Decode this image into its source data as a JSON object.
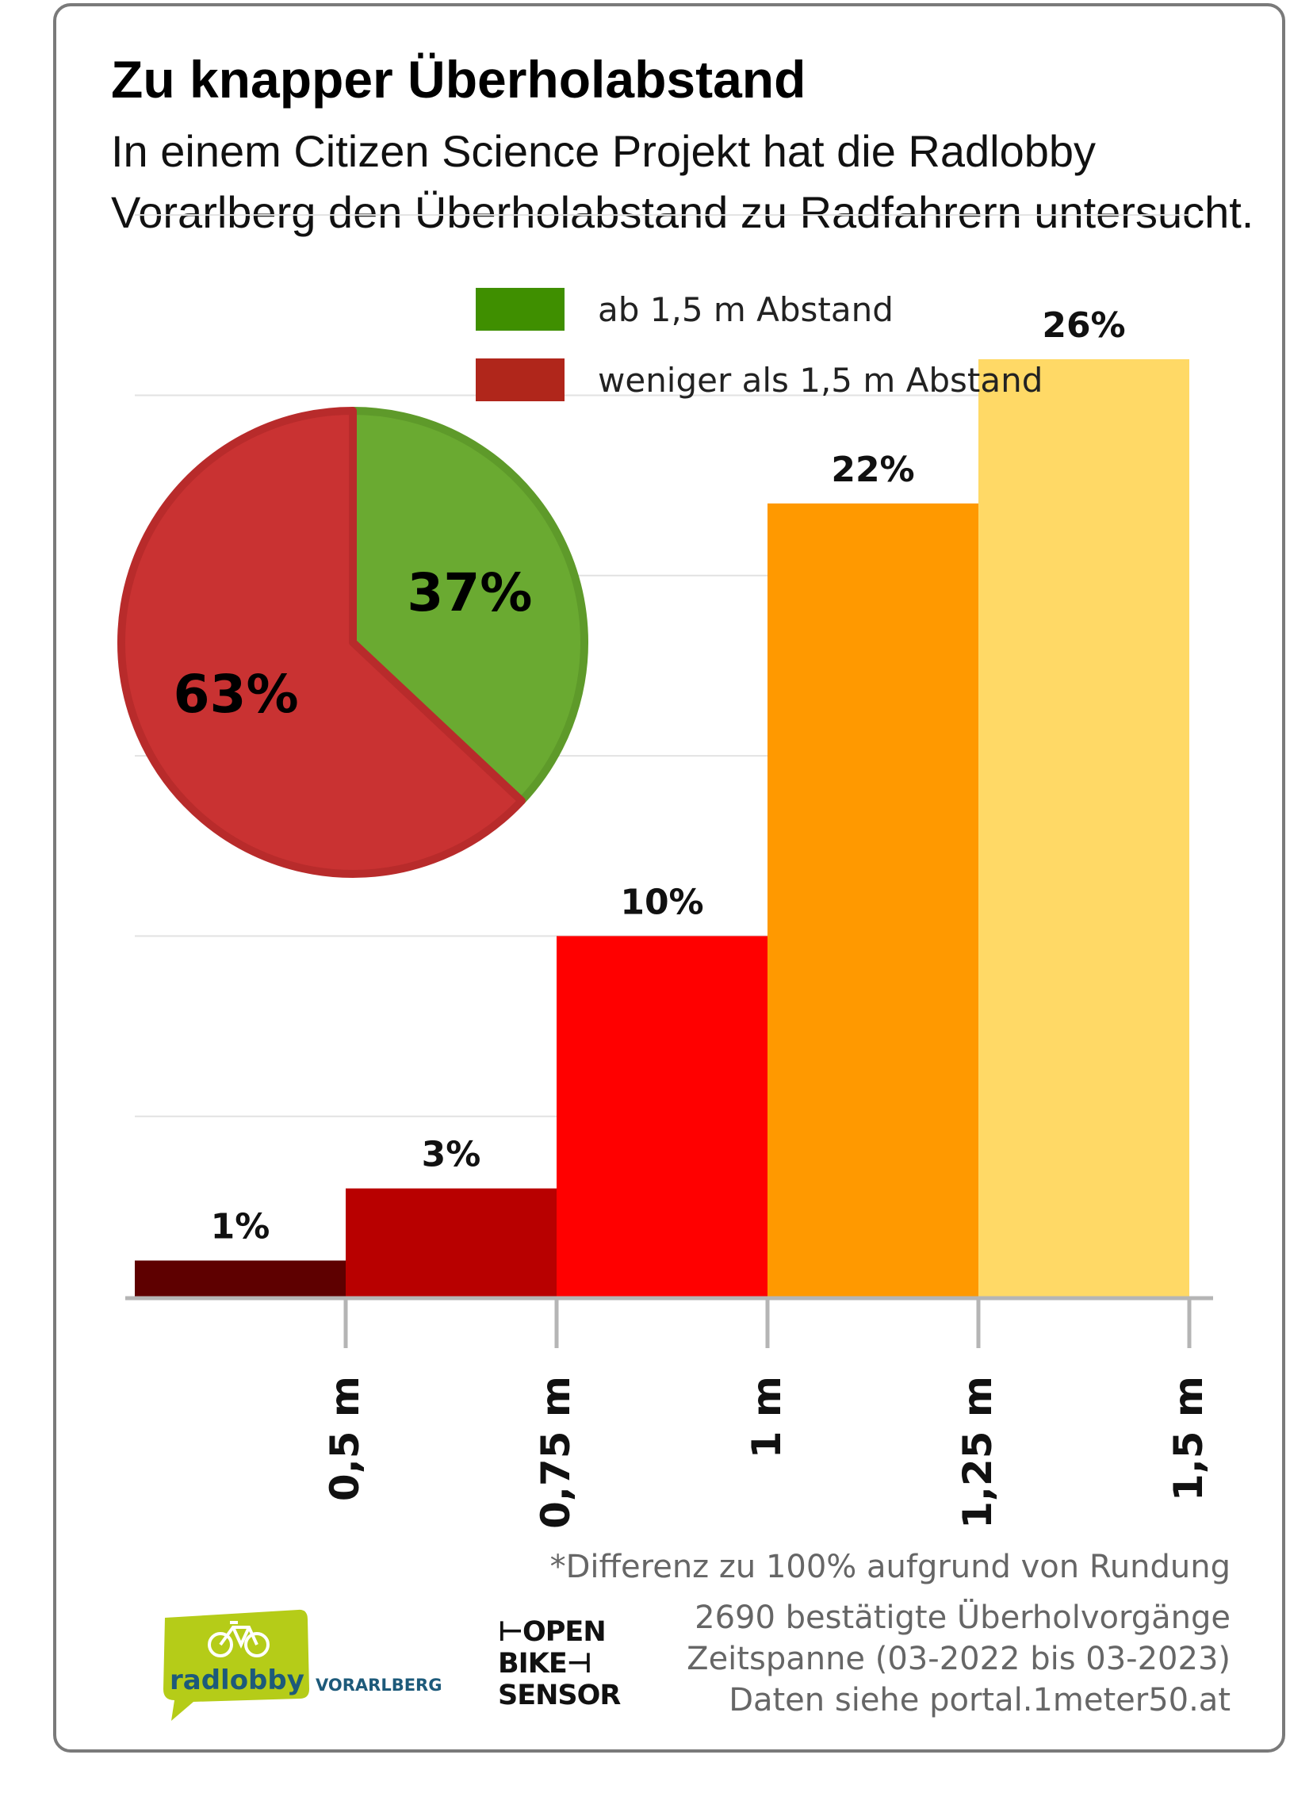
{
  "title": "Zu knapper Überholabstand",
  "subtitle": "In einem Citizen Science Projekt hat die Radlobby Vorarlberg den Überholabstand zu Radfahrern untersucht.",
  "legend": [
    {
      "label": "ab 1,5 m Abstand",
      "color": "#3f8f00"
    },
    {
      "label": "weniger als 1,5 m Abstand",
      "color": "#b0261b"
    }
  ],
  "chart_data": [
    {
      "type": "bar",
      "title": "",
      "xlabel": "",
      "ylabel": "",
      "categories": [
        "< 0,5 m",
        "0,5 m – 0,75 m",
        "0,75 m – 1 m",
        "1 m – 1,25 m",
        "1,25 m – 1,5 m"
      ],
      "tick_labels": [
        "0,5 m",
        "0,75 m",
        "1 m",
        "1,25 m",
        "1,5 m"
      ],
      "values": [
        1,
        3,
        10,
        22,
        26
      ],
      "value_labels": [
        "1%",
        "3%",
        "10%",
        "22%",
        "26%"
      ],
      "colors": [
        "#5e0000",
        "#b80000",
        "#ff0000",
        "#ff9900",
        "#ffd966"
      ],
      "ylim": [
        0,
        30
      ],
      "grid": true
    },
    {
      "type": "pie",
      "labels": [
        "ab 1,5 m Abstand",
        "weniger als 1,5 m Abstand"
      ],
      "values": [
        37,
        63
      ],
      "value_labels": [
        "37%",
        "63%"
      ],
      "colors": [
        "#6aaa31",
        "#c93232"
      ]
    }
  ],
  "notes": {
    "rounding": "*Differenz zu 100% aufgrund von Rundung",
    "count": "2690 bestätigte Überholvorgänge",
    "period": "Zeitspanne (03-2022 bis 03-2023)",
    "source": "Daten siehe portal.1meter50.at"
  },
  "logos": {
    "radlobby": {
      "name": "radlobby",
      "region": "VORARLBERG",
      "icon": "bicycle-icon",
      "color": "#b5cc18"
    },
    "openbikesensor": {
      "lines": [
        "OPEN",
        "BIKE",
        "SENSOR"
      ]
    }
  }
}
